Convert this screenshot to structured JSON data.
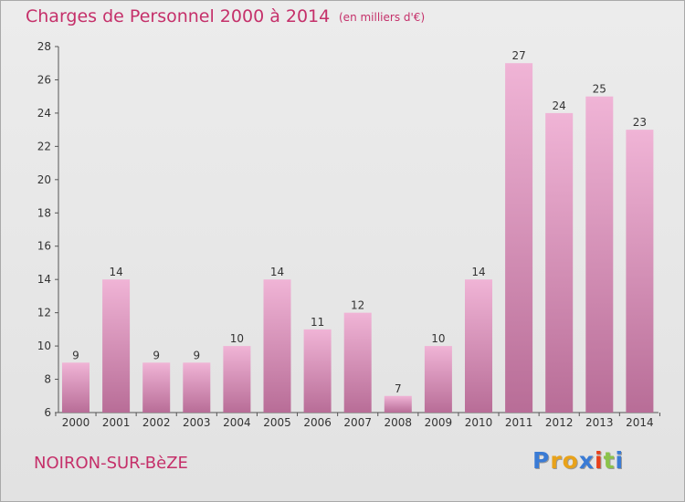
{
  "header": {
    "title": "Charges de Personnel 2000 à 2014",
    "subtitle": "(en milliers d'€)"
  },
  "footer": {
    "location": "NOIRON-SUR-BèZE",
    "logo_text": "Proxiti"
  },
  "colors": {
    "accent": "#c5306a",
    "bar_light": "#f0b4d6",
    "bar_dark": "#b86d97"
  },
  "chart_data": {
    "type": "bar",
    "title": "Charges de Personnel 2000 à 2014",
    "subtitle": "(en milliers d'€)",
    "categories": [
      "2000",
      "2001",
      "2002",
      "2003",
      "2004",
      "2005",
      "2006",
      "2007",
      "2008",
      "2009",
      "2010",
      "2011",
      "2012",
      "2013",
      "2014"
    ],
    "values": [
      9,
      14,
      9,
      9,
      10,
      14,
      11,
      12,
      7,
      10,
      14,
      27,
      24,
      25,
      23
    ],
    "ylim": [
      6,
      28
    ],
    "yticks": [
      6,
      8,
      10,
      12,
      14,
      16,
      18,
      20,
      22,
      24,
      26,
      28
    ],
    "grid": false,
    "xlabel": "",
    "ylabel": ""
  }
}
